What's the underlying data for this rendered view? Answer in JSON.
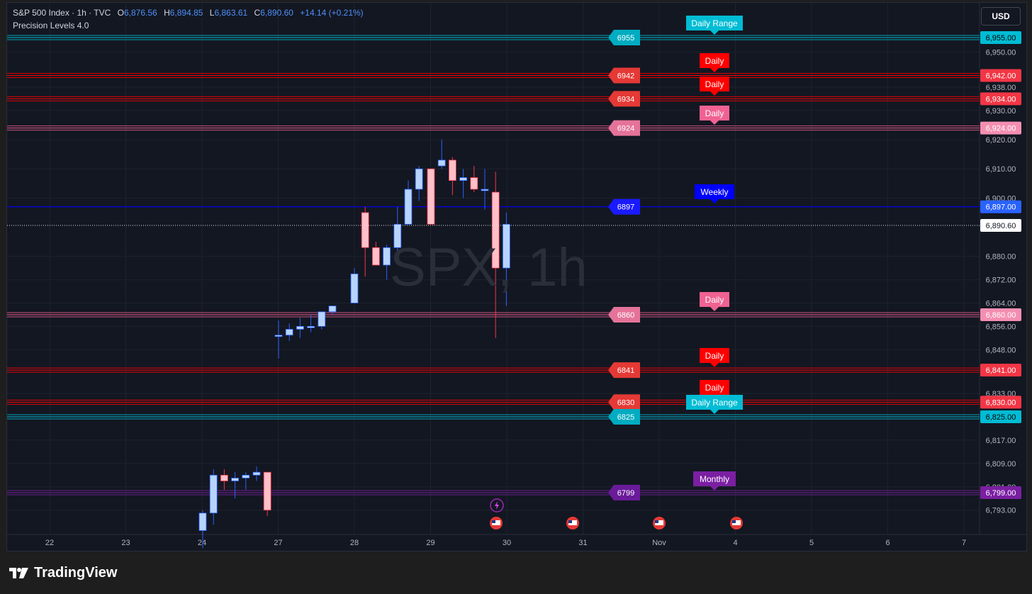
{
  "header": {
    "symbol": "S&P 500 Index · 1h · TVC",
    "open_label": "O",
    "open": "6,876.56",
    "high_label": "H",
    "high": "6,894.85",
    "low_label": "L",
    "low": "6,863.61",
    "close_label": "C",
    "close": "6,890.60",
    "change": "+14.14 (+0.21%)",
    "indicator": "Precision Levels 4.0"
  },
  "currency_button": "USD",
  "watermark": "SPX, 1h",
  "footer": {
    "brand": "TradingView"
  },
  "colors": {
    "background": "#131722",
    "up_candle": "#b7d4ff",
    "down_candle": "#ffc0c9",
    "daily_range": "#00bcd4",
    "daily_red": "#ff0000",
    "daily_pink": "#f06292",
    "weekly": "#0000ff",
    "monthly": "#7b1fa2"
  },
  "chart_data": {
    "type": "candlestick",
    "symbol": "SPX",
    "timeframe": "1h",
    "x_tick_labels": [
      "22",
      "23",
      "24",
      "27",
      "28",
      "29",
      "30",
      "31",
      "Nov",
      "4",
      "5",
      "6",
      "7"
    ],
    "y_tick_labels": [
      "6,950.00",
      "6,938.00",
      "6,930.00",
      "6,920.00",
      "6,910.00",
      "6,900.00",
      "6,880.00",
      "6,872.00",
      "6,864.00",
      "6,856.00",
      "6,848.00",
      "6,833.00",
      "6,817.00",
      "6,809.00",
      "6,801.00",
      "6,793.00"
    ],
    "last_price": "6,890.60",
    "levels": [
      {
        "price": 6955,
        "label": "6955",
        "axis_label": "6,955.00",
        "tag": "Daily Range",
        "kind": "daily_range"
      },
      {
        "price": 6942,
        "label": "6942",
        "axis_label": "6,942.00",
        "tag": "Daily",
        "kind": "daily_red"
      },
      {
        "price": 6934,
        "label": "6934",
        "axis_label": "6,934.00",
        "tag": "Daily",
        "kind": "daily_red"
      },
      {
        "price": 6924,
        "label": "6924",
        "axis_label": "6,924.00",
        "tag": "Daily",
        "kind": "daily_pink"
      },
      {
        "price": 6897,
        "label": "6897",
        "axis_label": "6,897.00",
        "tag": "Weekly",
        "kind": "weekly"
      },
      {
        "price": 6860,
        "label": "6860",
        "axis_label": "6,860.00",
        "tag": "Daily",
        "kind": "daily_pink"
      },
      {
        "price": 6841,
        "label": "6841",
        "axis_label": "6,841.00",
        "tag": "Daily",
        "kind": "daily_red"
      },
      {
        "price": 6830,
        "label": "6830",
        "axis_label": "6,830.00",
        "tag": "Daily",
        "kind": "daily_red"
      },
      {
        "price": 6825,
        "label": "6825",
        "axis_label": "6,825.00",
        "tag": "Daily Range",
        "kind": "daily_range"
      },
      {
        "price": 6799,
        "label": "6799",
        "axis_label": "6,799.00",
        "tag": "Monthly",
        "kind": "monthly"
      }
    ],
    "candles": [
      {
        "day": "24",
        "o": 6786,
        "h": 6793,
        "l": 6780,
        "c": 6792
      },
      {
        "day": "24",
        "o": 6792,
        "h": 6807,
        "l": 6788,
        "c": 6805
      },
      {
        "day": "24",
        "o": 6805,
        "h": 6807,
        "l": 6800,
        "c": 6803
      },
      {
        "day": "24",
        "o": 6803,
        "h": 6806,
        "l": 6797,
        "c": 6804
      },
      {
        "day": "24",
        "o": 6804,
        "h": 6806,
        "l": 6800,
        "c": 6805
      },
      {
        "day": "24",
        "o": 6805,
        "h": 6808,
        "l": 6803,
        "c": 6806
      },
      {
        "day": "24",
        "o": 6806,
        "h": 6806,
        "l": 6791,
        "c": 6793
      },
      {
        "day": "27",
        "o": 6853,
        "h": 6858,
        "l": 6845,
        "c": 6853
      },
      {
        "day": "27",
        "o": 6853,
        "h": 6857,
        "l": 6851,
        "c": 6855
      },
      {
        "day": "27",
        "o": 6855,
        "h": 6859,
        "l": 6852,
        "c": 6856
      },
      {
        "day": "27",
        "o": 6856,
        "h": 6860,
        "l": 6854,
        "c": 6856
      },
      {
        "day": "27",
        "o": 6856,
        "h": 6861,
        "l": 6855,
        "c": 6861
      },
      {
        "day": "27",
        "o": 6861,
        "h": 6863,
        "l": 6860,
        "c": 6863
      },
      {
        "day": "28",
        "o": 6864,
        "h": 6876,
        "l": 6864,
        "c": 6874
      },
      {
        "day": "28",
        "o": 6895,
        "h": 6897,
        "l": 6873,
        "c": 6883
      },
      {
        "day": "28",
        "o": 6883,
        "h": 6885,
        "l": 6877,
        "c": 6877
      },
      {
        "day": "28",
        "o": 6877,
        "h": 6884,
        "l": 6872,
        "c": 6883
      },
      {
        "day": "28",
        "o": 6883,
        "h": 6897,
        "l": 6880,
        "c": 6891
      },
      {
        "day": "28",
        "o": 6891,
        "h": 6906,
        "l": 6891,
        "c": 6903
      },
      {
        "day": "28",
        "o": 6903,
        "h": 6911,
        "l": 6899,
        "c": 6910
      },
      {
        "day": "29",
        "o": 6910,
        "h": 6910,
        "l": 6891,
        "c": 6891
      },
      {
        "day": "29",
        "o": 6911,
        "h": 6920,
        "l": 6910,
        "c": 6913
      },
      {
        "day": "29",
        "o": 6913,
        "h": 6914,
        "l": 6901,
        "c": 6906
      },
      {
        "day": "29",
        "o": 6906,
        "h": 6910,
        "l": 6900,
        "c": 6907
      },
      {
        "day": "29",
        "o": 6907,
        "h": 6911,
        "l": 6902,
        "c": 6903
      },
      {
        "day": "29",
        "o": 6903,
        "h": 6910,
        "l": 6896,
        "c": 6903
      },
      {
        "day": "29",
        "o": 6902,
        "h": 6909,
        "l": 6852,
        "c": 6876
      },
      {
        "day": "29",
        "o": 6876,
        "h": 6895,
        "l": 6863,
        "c": 6891
      }
    ]
  }
}
